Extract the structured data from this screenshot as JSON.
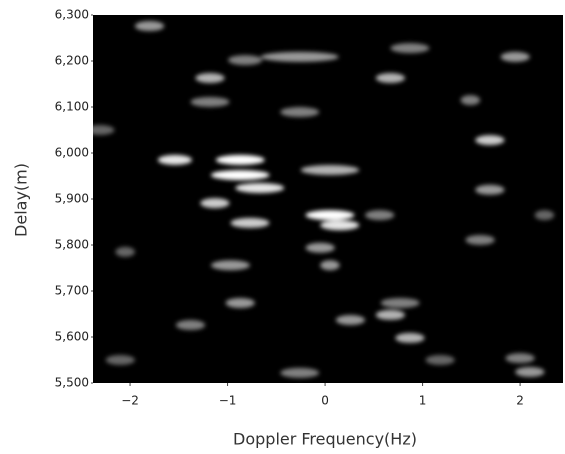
{
  "chart_data": {
    "type": "heatmap",
    "xlabel": "Doppler Frequency(Hz)",
    "ylabel": "Delay(m)",
    "xlim": [
      -2.38,
      2.44
    ],
    "ylim": [
      5500,
      6300
    ],
    "xticks": [
      {
        "value": -2,
        "label": "−2"
      },
      {
        "value": -1,
        "label": "−1"
      },
      0,
      1,
      2
    ],
    "yticks": [
      {
        "value": 5500,
        "label": "5,500"
      },
      {
        "value": 5600,
        "label": "5,600"
      },
      {
        "value": 5700,
        "label": "5,700"
      },
      {
        "value": 5800,
        "label": "5,800"
      },
      {
        "value": 5900,
        "label": "5,900"
      },
      {
        "value": 6000,
        "label": "6,000"
      },
      {
        "value": 6100,
        "label": "6,100"
      },
      {
        "value": 6200,
        "label": "6,200"
      },
      {
        "value": 6300,
        "label": "6,300"
      }
    ],
    "background": "#000000",
    "color": "#ffffff",
    "x": [
      -1.8,
      -0.82,
      -0.26,
      0.87,
      1.95,
      -1.18,
      0.67,
      -1.18,
      1.49,
      -0.26,
      1.69,
      -1.54,
      -0.87,
      -0.87,
      -0.67,
      0.05,
      -1.13,
      0.05,
      0.15,
      -0.77,
      0.56,
      1.69,
      -0.05,
      0.05,
      -0.97,
      -2.05,
      -0.87,
      0.77,
      0.26,
      0.67,
      0.87,
      -1.38,
      2.0,
      2.1,
      -2.1,
      -0.26,
      -2.31,
      2.25,
      1.59,
      1.18
    ],
    "y": [
      6276,
      6202,
      6209,
      6228,
      6209,
      6163,
      6163,
      6111,
      6115,
      6089,
      6028,
      5985,
      5985,
      5952,
      5924,
      5963,
      5891,
      5865,
      5843,
      5848,
      5865,
      5920,
      5794,
      5756,
      5756,
      5785,
      5674,
      5674,
      5637,
      5648,
      5598,
      5626,
      5554,
      5524,
      5550,
      5522,
      6050,
      5865,
      5811,
      5550
    ],
    "values": [
      0.6,
      0.5,
      0.6,
      0.5,
      0.6,
      0.7,
      0.7,
      0.5,
      0.5,
      0.5,
      0.8,
      0.9,
      1,
      1,
      0.9,
      0.7,
      0.8,
      1,
      0.9,
      0.8,
      0.5,
      0.6,
      0.6,
      0.6,
      0.6,
      0.4,
      0.6,
      0.5,
      0.6,
      0.7,
      0.7,
      0.5,
      0.5,
      0.6,
      0.4,
      0.5,
      0.4,
      0.4,
      0.5,
      0.4
    ],
    "widths": [
      0.3,
      0.35,
      0.8,
      0.4,
      0.3,
      0.3,
      0.3,
      0.4,
      0.2,
      0.4,
      0.3,
      0.35,
      0.5,
      0.6,
      0.5,
      0.6,
      0.3,
      0.5,
      0.4,
      0.4,
      0.3,
      0.3,
      0.3,
      0.2,
      0.4,
      0.2,
      0.3,
      0.4,
      0.3,
      0.3,
      0.3,
      0.3,
      0.3,
      0.3,
      0.3,
      0.4,
      0.3,
      0.2,
      0.3,
      0.3
    ]
  }
}
